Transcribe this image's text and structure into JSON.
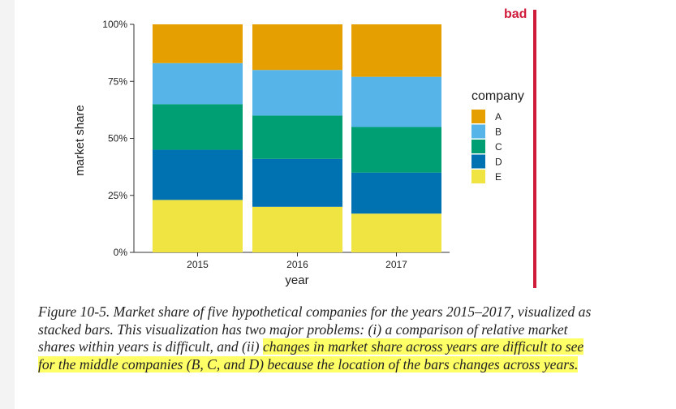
{
  "chart_data": {
    "type": "bar",
    "stacked": true,
    "title": "",
    "xlabel": "year",
    "ylabel": "market share",
    "categories": [
      "2015",
      "2016",
      "2017"
    ],
    "yticks": [
      "0%",
      "25%",
      "50%",
      "75%",
      "100%"
    ],
    "ylim": [
      0,
      100
    ],
    "legend_title": "company",
    "legend_position": "right",
    "series": [
      {
        "name": "E",
        "color": "#f0e442",
        "values": [
          23,
          20,
          17
        ]
      },
      {
        "name": "D",
        "color": "#0072b2",
        "values": [
          22,
          21,
          18
        ]
      },
      {
        "name": "C",
        "color": "#009e73",
        "values": [
          20,
          19,
          20
        ]
      },
      {
        "name": "B",
        "color": "#56b4e9",
        "values": [
          18,
          20,
          22
        ]
      },
      {
        "name": "A",
        "color": "#e69f00",
        "values": [
          17,
          20,
          23
        ]
      }
    ],
    "legend_order": [
      "A",
      "B",
      "C",
      "D",
      "E"
    ]
  },
  "annotation": {
    "bad_label": "bad",
    "bad_color": "#d01c3b"
  },
  "caption": {
    "part1": "Figure 10-5. Market share of five hypothetical companies for the years 2015–2017, visualized as stacked bars. This visualization has two major problems: (i) a comparison of relative market shares within years is difficult, and (ii) ",
    "highlighted": "changes in market share across years are difficult to see for the middle companies (B, C, and D) because the location of the bars changes across years."
  }
}
